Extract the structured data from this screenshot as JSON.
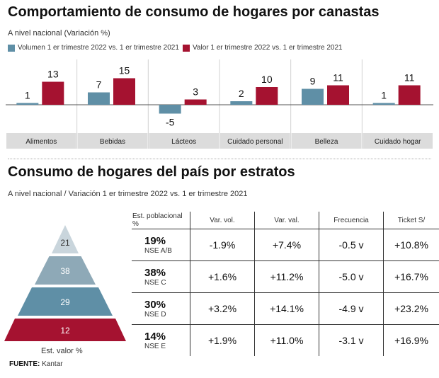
{
  "header": {
    "title": "Comportamiento de consumo de hogares por canastas",
    "subtitle": "A nivel nacional (Variación %)"
  },
  "colors": {
    "volume": "#5f8fa6",
    "value": "#a51230",
    "label_bg": "#dcdcdc",
    "pyramid": [
      "#c9d5dc",
      "#8ea9b7",
      "#5f8fa6",
      "#a51230"
    ]
  },
  "chart_data": {
    "type": "bar",
    "categories": [
      "Alimentos",
      "Bebidas",
      "Lácteos",
      "Cuidado personal",
      "Belleza",
      "Cuidado hogar"
    ],
    "series": [
      {
        "name": "Volumen 1 er trimestre 2022 vs. 1 er trimestre 2021",
        "values": [
          1,
          7,
          -5,
          2,
          9,
          1
        ]
      },
      {
        "name": "Valor 1 er trimestre 2022 vs. 1 er trimestre 2021",
        "values": [
          13,
          15,
          3,
          10,
          11,
          11
        ]
      }
    ],
    "ylim": [
      -5,
      15
    ]
  },
  "section2": {
    "title": "Consumo de hogares del país por estratos",
    "subtitle": "A nivel nacional / Variación 1 er trimestre 2022 vs. 1 er trimestre 2021",
    "col_headers": [
      "Est. poblacional %",
      "Var. vol.",
      "Var. val.",
      "Frecuencia",
      "Ticket S/"
    ],
    "rows": [
      {
        "pct": "19%",
        "nse": "NSE A/B",
        "var_vol": "-1.9%",
        "var_val": "+7.4%",
        "frecuencia": "-0.5 v",
        "ticket": "+10.8%"
      },
      {
        "pct": "38%",
        "nse": "NSE C",
        "var_vol": "+1.6%",
        "var_val": "+11.2%",
        "frecuencia": "-5.0 v",
        "ticket": "+16.7%"
      },
      {
        "pct": "30%",
        "nse": "NSE D",
        "var_vol": "+3.2%",
        "var_val": "+14.1%",
        "frecuencia": "-4.9 v",
        "ticket": "+23.2%"
      },
      {
        "pct": "14%",
        "nse": "NSE E",
        "var_vol": "+1.9%",
        "var_val": "+11.0%",
        "frecuencia": "-3.1 v",
        "ticket": "+16.9%"
      }
    ],
    "pyramid_values": [
      "21",
      "38",
      "29",
      "12"
    ],
    "pyramid_label": "Est. valor %"
  },
  "footer": {
    "source_label": "FUENTE:",
    "source": "Kantar"
  }
}
